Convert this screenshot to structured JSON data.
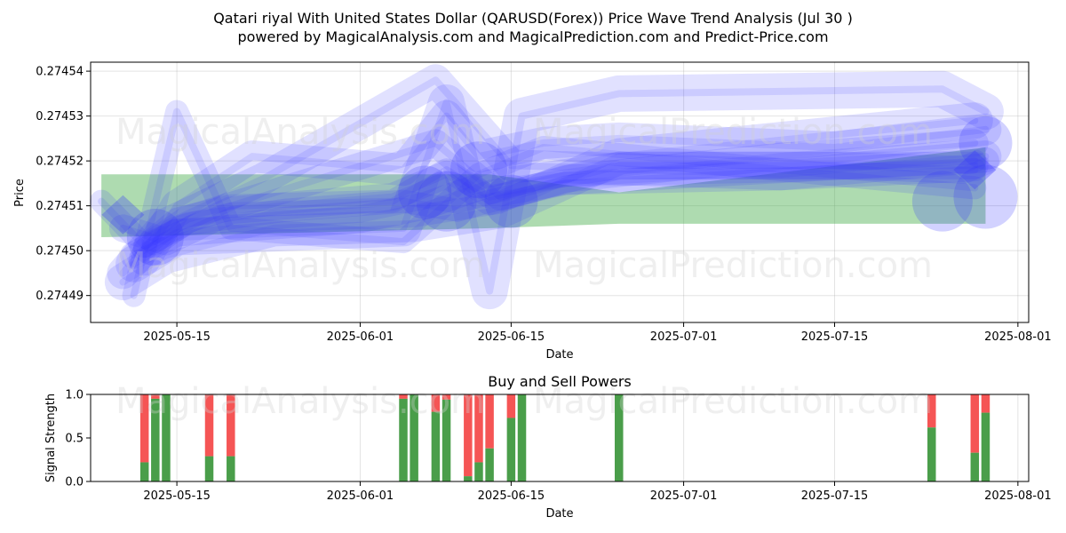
{
  "title_line1": "Qatari riyal With United States Dollar (QARUSD(Forex)) Price Wave Trend Analysis (Jul 30 )",
  "title_line2": "powered by MagicalAnalysis.com and MagicalPrediction.com and Predict-Price.com",
  "watermarks": [
    "MagicalAnalysis.com",
    "MagicalPrediction.com"
  ],
  "colors": {
    "wave": "#3333ff",
    "band": "#4caf50",
    "buy": "#4a9e4a",
    "sell": "#f55555"
  },
  "chart_data": [
    {
      "type": "line",
      "title": "",
      "xlabel": "Date",
      "ylabel": "Price",
      "x_ticks": [
        "2025-05-15",
        "2025-06-01",
        "2025-06-15",
        "2025-07-01",
        "2025-07-15",
        "2025-08-01"
      ],
      "y_ticks": [
        "0.27449",
        "0.27450",
        "0.27451",
        "0.27452",
        "0.27453",
        "0.27454"
      ],
      "xlim": [
        "2025-05-07",
        "2025-08-02"
      ],
      "ylim": [
        0.274484,
        0.274542
      ],
      "grid": true,
      "band": {
        "x": [
          "2025-05-08",
          "2025-06-13",
          "2025-06-25",
          "2025-07-29"
        ],
        "upper": [
          0.274517,
          0.274517,
          0.274513,
          0.274523
        ],
        "lower": [
          0.274503,
          0.274505,
          0.274506,
          0.274506
        ]
      },
      "series": [
        {
          "x": [
            "2025-05-08",
            "2025-05-12",
            "2025-05-16",
            "2025-05-25",
            "2025-06-05",
            "2025-06-10",
            "2025-06-13",
            "2025-06-20",
            "2025-07-10",
            "2025-07-28"
          ],
          "y": [
            0.274511,
            0.274501,
            0.274506,
            0.274509,
            0.274511,
            0.274509,
            0.274511,
            0.274515,
            0.274516,
            0.274518
          ]
        },
        {
          "x": [
            "2025-05-10",
            "2025-05-14",
            "2025-05-20",
            "2025-06-04",
            "2025-06-09",
            "2025-06-13",
            "2025-06-20",
            "2025-07-10",
            "2025-07-28"
          ],
          "y": [
            0.274505,
            0.274502,
            0.274509,
            0.274512,
            0.274517,
            0.274511,
            0.274516,
            0.274521,
            0.274524
          ]
        },
        {
          "x": [
            "2025-05-12",
            "2025-05-15",
            "2025-05-22",
            "2025-06-05",
            "2025-06-09",
            "2025-06-12",
            "2025-06-18",
            "2025-06-25",
            "2025-07-15",
            "2025-07-29"
          ],
          "y": [
            0.274498,
            0.27451,
            0.274521,
            0.274518,
            0.27453,
            0.274521,
            0.274524,
            0.274525,
            0.274523,
            0.274527
          ]
        },
        {
          "x": [
            "2025-05-10",
            "2025-05-14",
            "2025-05-24",
            "2025-06-06",
            "2025-06-14",
            "2025-06-25",
            "2025-07-28"
          ],
          "y": [
            0.274493,
            0.274499,
            0.274505,
            0.274506,
            0.274509,
            0.274521,
            0.274529
          ]
        },
        {
          "x": [
            "2025-05-11",
            "2025-05-15",
            "2025-05-20",
            "2025-06-05",
            "2025-06-12",
            "2025-06-18",
            "2025-07-28"
          ],
          "y": [
            0.27449,
            0.274531,
            0.274505,
            0.274502,
            0.274517,
            0.274523,
            0.274514
          ]
        },
        {
          "x": [
            "2025-05-13",
            "2025-05-16",
            "2025-06-08",
            "2025-06-14",
            "2025-06-25",
            "2025-07-28"
          ],
          "y": [
            0.274502,
            0.274507,
            0.274524,
            0.274512,
            0.274519,
            0.274519
          ]
        },
        {
          "x": [
            "2025-05-10",
            "2025-05-14",
            "2025-05-23",
            "2025-06-08",
            "2025-06-15",
            "2025-07-10",
            "2025-07-29"
          ],
          "y": [
            0.274495,
            0.274506,
            0.274516,
            0.274538,
            0.274519,
            0.274517,
            0.274521
          ]
        },
        {
          "x": [
            "2025-05-11",
            "2025-05-15",
            "2025-06-05",
            "2025-06-09",
            "2025-06-13",
            "2025-06-16",
            "2025-06-25",
            "2025-07-25",
            "2025-07-29"
          ],
          "y": [
            0.274497,
            0.274503,
            0.274505,
            0.274533,
            0.274491,
            0.27453,
            0.274535,
            0.274536,
            0.274531
          ]
        },
        {
          "x": [
            "2025-05-12",
            "2025-05-15",
            "2025-05-20",
            "2025-06-04",
            "2025-06-09",
            "2025-06-13",
            "2025-06-20",
            "2025-07-28"
          ],
          "y": [
            0.274501,
            0.274507,
            0.27451,
            0.274511,
            0.274518,
            0.274512,
            0.274515,
            0.27452
          ]
        },
        {
          "x": [
            "2025-05-11",
            "2025-05-15",
            "2025-06-01",
            "2025-06-07",
            "2025-06-13",
            "2025-06-25",
            "2025-07-15",
            "2025-07-27",
            "2025-07-29"
          ],
          "y": [
            0.274499,
            0.274504,
            0.274507,
            0.27451,
            0.274515,
            0.274519,
            0.274519,
            0.274518,
            0.27452
          ]
        }
      ],
      "markers": [
        {
          "x": "2025-05-13",
          "y": 0.274503,
          "size": 32
        },
        {
          "x": "2025-06-07",
          "y": 0.274513,
          "size": 30
        },
        {
          "x": "2025-06-09",
          "y": 0.274511,
          "size": 34
        },
        {
          "x": "2025-06-12",
          "y": 0.274518,
          "size": 32
        },
        {
          "x": "2025-06-15",
          "y": 0.274511,
          "size": 30
        },
        {
          "x": "2025-07-25",
          "y": 0.274511,
          "size": 34
        },
        {
          "x": "2025-07-29",
          "y": 0.274512,
          "size": 36
        },
        {
          "x": "2025-07-29",
          "y": 0.274524,
          "size": 30
        }
      ],
      "arrows": [
        {
          "x": "2025-05-10",
          "y": 0.274508
        },
        {
          "x": "2025-07-28",
          "y": 0.274518
        }
      ]
    },
    {
      "type": "bar",
      "title": "Buy and Sell Powers",
      "xlabel": "Date",
      "ylabel": "Signal Strength",
      "x_ticks": [
        "2025-05-15",
        "2025-06-01",
        "2025-06-15",
        "2025-07-01",
        "2025-07-15",
        "2025-08-01"
      ],
      "y_ticks": [
        "0.0",
        "0.5",
        "1.0"
      ],
      "xlim": [
        "2025-05-07",
        "2025-08-02"
      ],
      "ylim": [
        0,
        1
      ],
      "bars": [
        {
          "date": "2025-05-12",
          "buy": 0.22
        },
        {
          "date": "2025-05-13",
          "buy": 0.95
        },
        {
          "date": "2025-05-14",
          "buy": 1.0
        },
        {
          "date": "2025-05-18",
          "buy": 0.29
        },
        {
          "date": "2025-05-20",
          "buy": 0.29
        },
        {
          "date": "2025-06-05",
          "buy": 0.95
        },
        {
          "date": "2025-06-06",
          "buy": 1.0
        },
        {
          "date": "2025-06-08",
          "buy": 0.8
        },
        {
          "date": "2025-06-09",
          "buy": 0.94
        },
        {
          "date": "2025-06-11",
          "buy": 0.06
        },
        {
          "date": "2025-06-12",
          "buy": 0.22
        },
        {
          "date": "2025-06-13",
          "buy": 0.38
        },
        {
          "date": "2025-06-15",
          "buy": 0.73
        },
        {
          "date": "2025-06-16",
          "buy": 1.0
        },
        {
          "date": "2025-06-25",
          "buy": 1.0
        },
        {
          "date": "2025-07-24",
          "buy": 0.62
        },
        {
          "date": "2025-07-28",
          "buy": 0.33
        },
        {
          "date": "2025-07-29",
          "buy": 0.79
        }
      ]
    }
  ]
}
